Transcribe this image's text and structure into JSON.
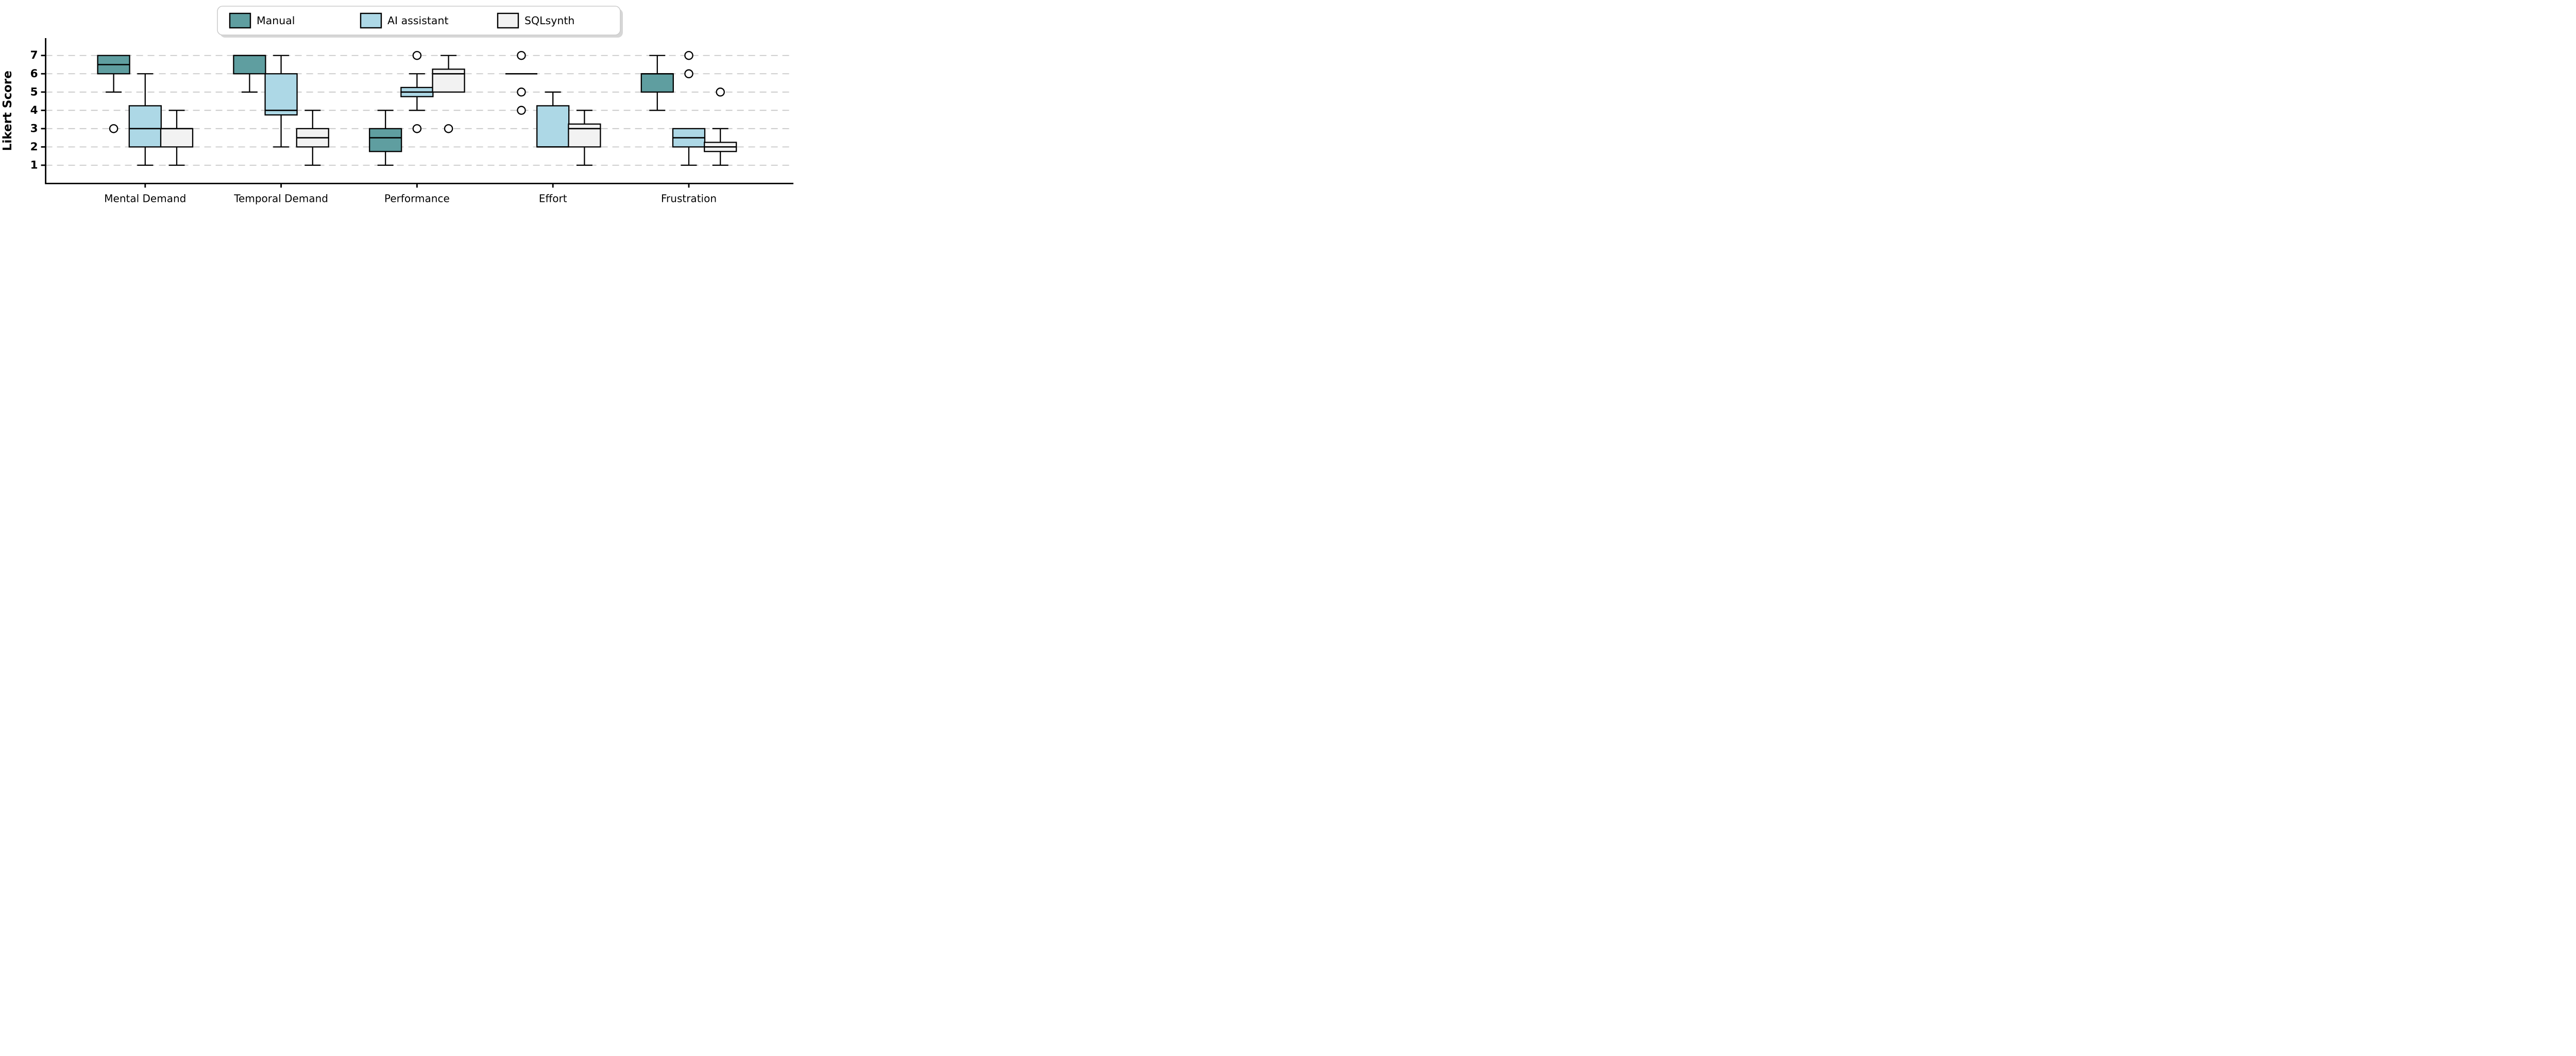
{
  "figure": {
    "background": "#ffffff",
    "accent_colors": [
      "#5F9EA0",
      "#ADD8E6",
      "#F2F2F2"
    ]
  },
  "chart_data": {
    "type": "boxplot",
    "title": "",
    "xlabel": "",
    "ylabel": "Likert Score",
    "ylim": [
      0,
      7.95
    ],
    "yticks": [
      1,
      2,
      3,
      4,
      5,
      6,
      7
    ],
    "grid": "horizontal-dashed",
    "gridline_color": "#c8c8c8",
    "box_edge_color": "#000000",
    "legend_position": "top-center",
    "legend_entries": [
      "Manual",
      "AI assistant",
      "SQLsynth"
    ],
    "categories": [
      "Mental Demand",
      "Temporal Demand",
      "Performance",
      "Effort",
      "Frustration"
    ],
    "series": [
      {
        "name": "Manual",
        "color": "#5F9EA0",
        "boxes": [
          {
            "whislo": 5,
            "q1": 6,
            "med": 6.5,
            "q3": 7,
            "whishi": 7,
            "fliers": [
              3
            ]
          },
          {
            "whislo": 5,
            "q1": 6,
            "med": 7,
            "q3": 7,
            "whishi": 7,
            "fliers": []
          },
          {
            "whislo": 1,
            "q1": 1.75,
            "med": 2.5,
            "q3": 3,
            "whishi": 4,
            "fliers": []
          },
          {
            "whislo": 6,
            "q1": 6,
            "med": 6,
            "q3": 6,
            "whishi": 6,
            "fliers": [
              7,
              5,
              4
            ]
          },
          {
            "whislo": 4,
            "q1": 5,
            "med": 6,
            "q3": 6,
            "whishi": 7,
            "fliers": []
          }
        ]
      },
      {
        "name": "AI assistant",
        "color": "#ADD8E6",
        "boxes": [
          {
            "whislo": 1,
            "q1": 2,
            "med": 3,
            "q3": 4.25,
            "whishi": 6,
            "fliers": []
          },
          {
            "whislo": 2,
            "q1": 3.75,
            "med": 4,
            "q3": 6,
            "whishi": 7,
            "fliers": []
          },
          {
            "whislo": 4,
            "q1": 4.75,
            "med": 5,
            "q3": 5.25,
            "whishi": 6,
            "fliers": [
              7,
              3
            ]
          },
          {
            "whislo": 2,
            "q1": 2,
            "med": 2,
            "q3": 4.25,
            "whishi": 5,
            "fliers": []
          },
          {
            "whislo": 1,
            "q1": 2,
            "med": 2.5,
            "q3": 3,
            "whishi": 3,
            "fliers": [
              7,
              6
            ]
          }
        ]
      },
      {
        "name": "SQLsynth",
        "color": "#F2F2F2",
        "boxes": [
          {
            "whislo": 1,
            "q1": 2,
            "med": 3,
            "q3": 3,
            "whishi": 4,
            "fliers": []
          },
          {
            "whislo": 1,
            "q1": 2,
            "med": 2.5,
            "q3": 3,
            "whishi": 4,
            "fliers": []
          },
          {
            "whislo": 5,
            "q1": 5,
            "med": 6,
            "q3": 6.25,
            "whishi": 7,
            "fliers": [
              3
            ]
          },
          {
            "whislo": 1,
            "q1": 2,
            "med": 3,
            "q3": 3.25,
            "whishi": 4,
            "fliers": []
          },
          {
            "whislo": 1,
            "q1": 1.75,
            "med": 2,
            "q3": 2.25,
            "whishi": 3,
            "fliers": [
              5
            ]
          }
        ]
      }
    ]
  }
}
